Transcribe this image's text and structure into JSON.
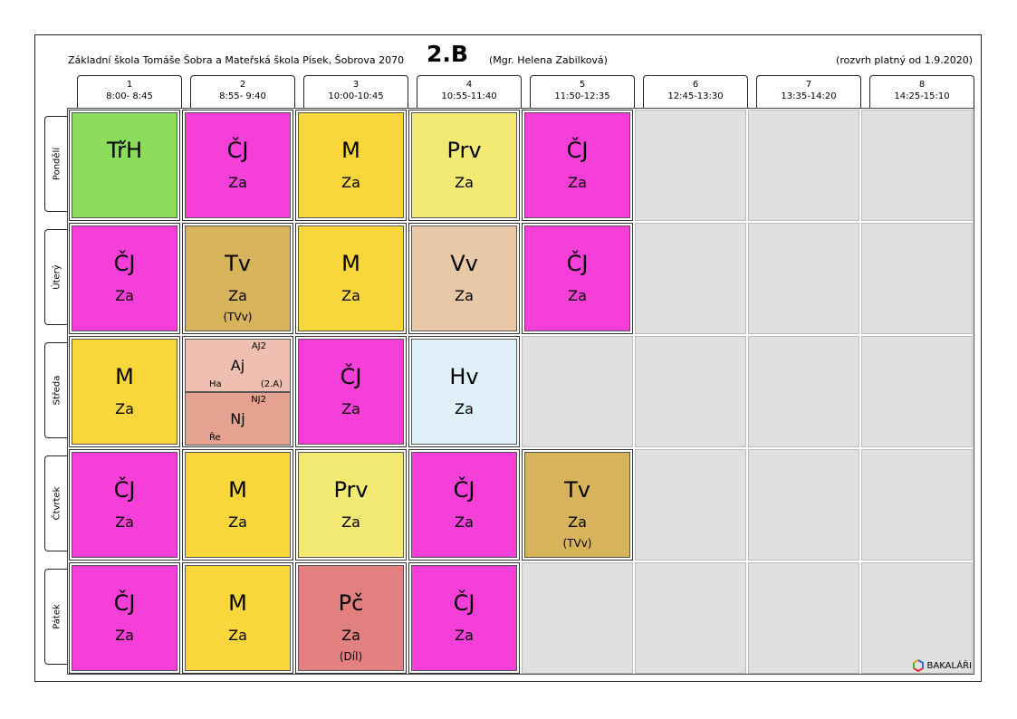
{
  "header": {
    "school": "Základní škola Tomáše Šobra a Mateřská škola Písek, Šobrova 2070",
    "class": "2.B",
    "teacher": "(Mgr. Helena Zabilková)",
    "validity": "(rozvrh platný od 1.9.2020)"
  },
  "periods": [
    {
      "num": "1",
      "time": "8:00- 8:45"
    },
    {
      "num": "2",
      "time": "8:55- 9:40"
    },
    {
      "num": "3",
      "time": "10:00-10:45"
    },
    {
      "num": "4",
      "time": "10:55-11:40"
    },
    {
      "num": "5",
      "time": "11:50-12:35"
    },
    {
      "num": "6",
      "time": "12:45-13:30"
    },
    {
      "num": "7",
      "time": "13:35-14:20"
    },
    {
      "num": "8",
      "time": "14:25-15:10"
    }
  ],
  "days": [
    "Pondělí",
    "Úterý",
    "Středa",
    "Čtvrtek",
    "Pátek"
  ],
  "colors": {
    "TrH": "#8cdc5c",
    "CJ": "#f53fd8",
    "M": "#f8d63c",
    "Prv": "#f2ea72",
    "Tv": "#d7b45c",
    "Vv": "#e8c8a6",
    "Hv": "#dff0f8",
    "Pc": "#e28080",
    "Aj": "#efbfb1",
    "Nj": "#e6a290",
    "empty": "#e0e0e0"
  },
  "schedule": [
    [
      {
        "subject": "TřH",
        "teacher": "",
        "room": "",
        "color": "TrH"
      },
      {
        "subject": "ČJ",
        "teacher": "Za",
        "room": "",
        "color": "CJ"
      },
      {
        "subject": "M",
        "teacher": "Za",
        "room": "",
        "color": "M"
      },
      {
        "subject": "Prv",
        "teacher": "Za",
        "room": "",
        "color": "Prv"
      },
      {
        "subject": "ČJ",
        "teacher": "Za",
        "room": "",
        "color": "CJ"
      },
      null,
      null,
      null
    ],
    [
      {
        "subject": "ČJ",
        "teacher": "Za",
        "room": "",
        "color": "CJ"
      },
      {
        "subject": "Tv",
        "teacher": "Za",
        "room": "(TVv)",
        "color": "Tv"
      },
      {
        "subject": "M",
        "teacher": "Za",
        "room": "",
        "color": "M"
      },
      {
        "subject": "Vv",
        "teacher": "Za",
        "room": "",
        "color": "Vv"
      },
      {
        "subject": "ČJ",
        "teacher": "Za",
        "room": "",
        "color": "CJ"
      },
      null,
      null,
      null
    ],
    [
      {
        "subject": "M",
        "teacher": "Za",
        "room": "",
        "color": "M"
      },
      {
        "split": [
          {
            "subject": "Aj",
            "group": "AJ2",
            "teacher": "Ha",
            "room": "(2.A)",
            "color": "Aj"
          },
          {
            "subject": "Nj",
            "group": "NJ2",
            "teacher": "Ře",
            "room": "",
            "color": "Nj"
          }
        ]
      },
      {
        "subject": "ČJ",
        "teacher": "Za",
        "room": "",
        "color": "CJ"
      },
      {
        "subject": "Hv",
        "teacher": "Za",
        "room": "",
        "color": "Hv"
      },
      null,
      null,
      null,
      null
    ],
    [
      {
        "subject": "ČJ",
        "teacher": "Za",
        "room": "",
        "color": "CJ"
      },
      {
        "subject": "M",
        "teacher": "Za",
        "room": "",
        "color": "M"
      },
      {
        "subject": "Prv",
        "teacher": "Za",
        "room": "",
        "color": "Prv"
      },
      {
        "subject": "ČJ",
        "teacher": "Za",
        "room": "",
        "color": "CJ"
      },
      {
        "subject": "Tv",
        "teacher": "Za",
        "room": "(TVv)",
        "color": "Tv"
      },
      null,
      null,
      null
    ],
    [
      {
        "subject": "ČJ",
        "teacher": "Za",
        "room": "",
        "color": "CJ"
      },
      {
        "subject": "M",
        "teacher": "Za",
        "room": "",
        "color": "M"
      },
      {
        "subject": "Pč",
        "teacher": "Za",
        "room": "(Díl)",
        "color": "Pc"
      },
      {
        "subject": "ČJ",
        "teacher": "Za",
        "room": "",
        "color": "CJ"
      },
      null,
      null,
      null,
      null
    ]
  ],
  "brand": {
    "label": "BAKALÁŘI",
    "icon": "bakalari-logo-icon"
  }
}
